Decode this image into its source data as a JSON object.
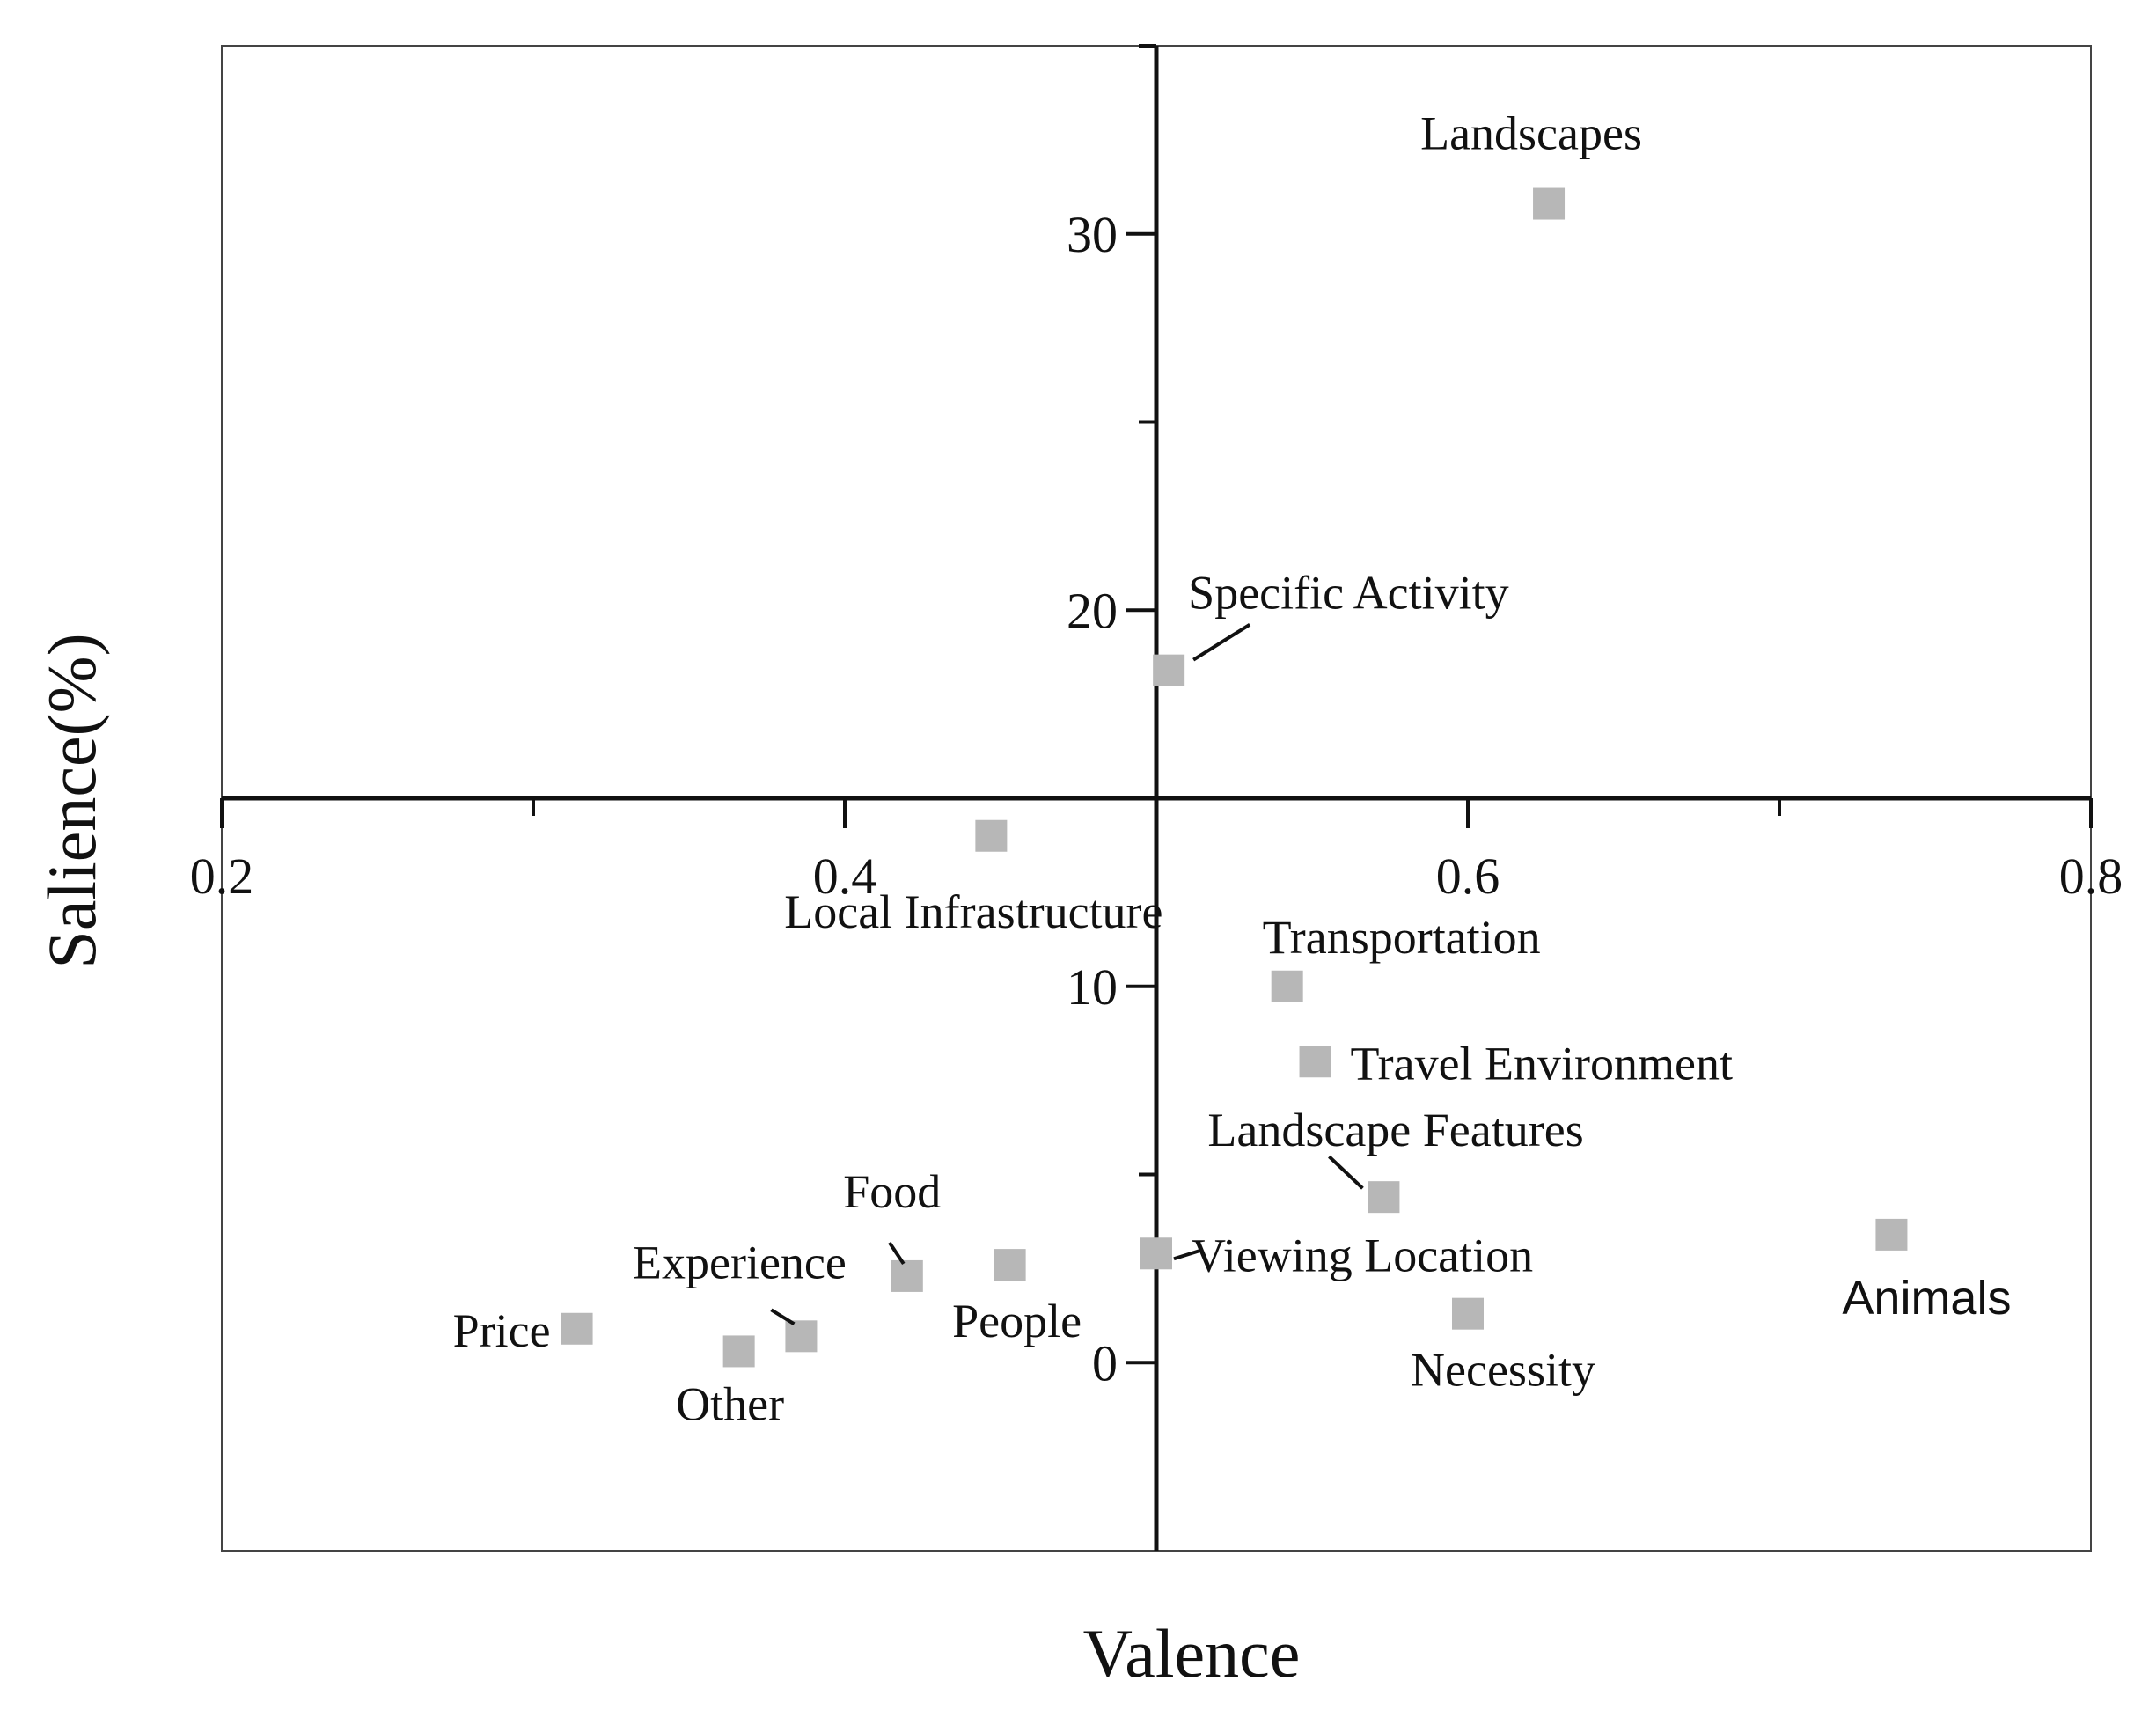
{
  "chart_data": {
    "type": "scatter",
    "title": "",
    "xlabel": "Valence",
    "ylabel": "Salience(%)",
    "xlim": [
      0.2,
      0.8
    ],
    "ylim": [
      -5,
      35
    ],
    "x_ticks": [
      0.2,
      0.4,
      0.6,
      0.8
    ],
    "x_tick_labels": [
      "0.2",
      "0.4",
      "0.6",
      "0.8"
    ],
    "y_ticks": [
      0,
      10,
      20,
      30
    ],
    "y_tick_labels": [
      "0",
      "10",
      "20",
      "30"
    ],
    "axes_cross_at": {
      "x": 0.5,
      "y": 15
    },
    "grid": false,
    "legend": "none",
    "marker": "square",
    "marker_color": "#b7b7b7",
    "axis_color": "#111111",
    "points": [
      {
        "label": "Landscapes",
        "x": 0.626,
        "y": 30.8
      },
      {
        "label": "Specific Activity",
        "x": 0.504,
        "y": 18.4
      },
      {
        "label": "Local Infrastructure",
        "x": 0.447,
        "y": 14.0
      },
      {
        "label": "Transportation",
        "x": 0.542,
        "y": 10.0
      },
      {
        "label": "Travel Environment",
        "x": 0.551,
        "y": 8.0
      },
      {
        "label": "Landscape Features",
        "x": 0.573,
        "y": 4.4
      },
      {
        "label": "Viewing Location",
        "x": 0.5,
        "y": 2.9
      },
      {
        "label": "Necessity",
        "x": 0.6,
        "y": 1.3
      },
      {
        "label": "Animals",
        "x": 0.736,
        "y": 3.4
      },
      {
        "label": "Food",
        "x": 0.42,
        "y": 2.3
      },
      {
        "label": "People",
        "x": 0.453,
        "y": 2.6
      },
      {
        "label": "Experience",
        "x": 0.386,
        "y": 0.7
      },
      {
        "label": "Price",
        "x": 0.314,
        "y": 0.9
      },
      {
        "label": "Other",
        "x": 0.366,
        "y": 0.3
      }
    ]
  }
}
